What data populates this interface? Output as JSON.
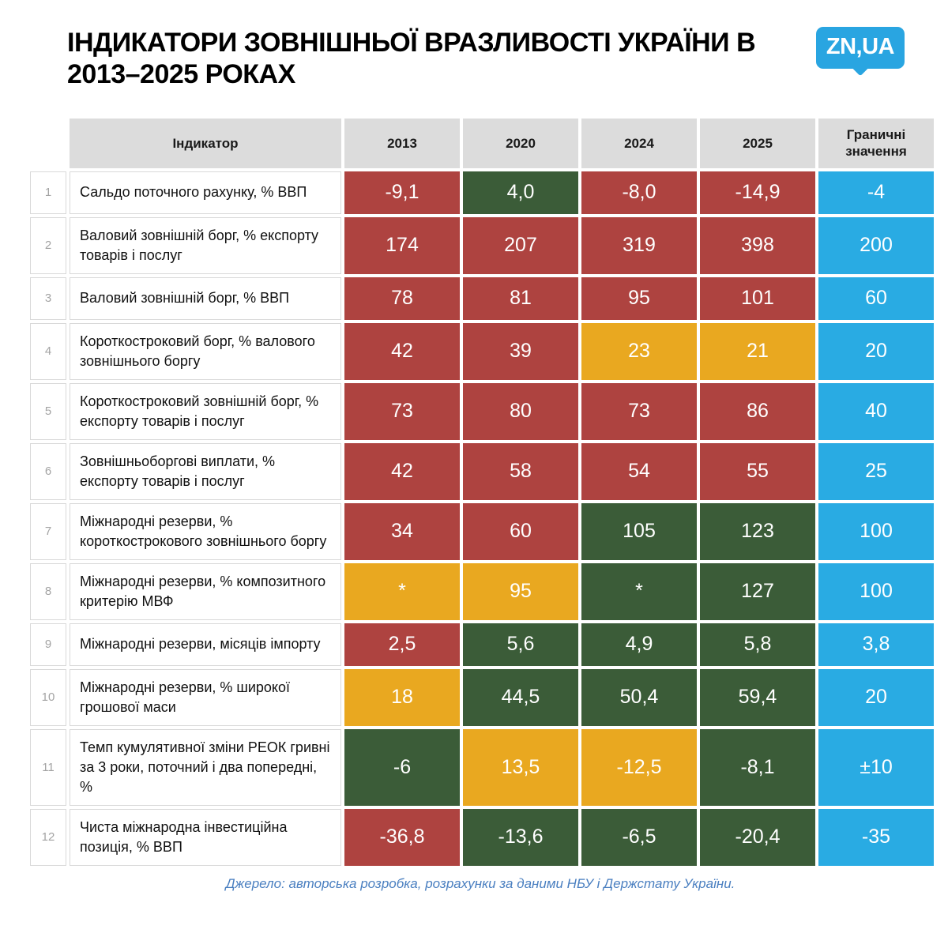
{
  "logo_text": "ZN,UA",
  "chart_data": {
    "type": "table",
    "title": "Індикатори зовнішньої вразливості України в 2013–2025 роках",
    "columns": [
      "Індикатор",
      "2013",
      "2020",
      "2024",
      "2025",
      "Граничні значення"
    ],
    "legend_colors": {
      "red": "#ae4340",
      "green": "#3b5c38",
      "yellow": "#e9a820",
      "blue": "#29abe3"
    },
    "rows": [
      {
        "num": "1",
        "indicator": "Сальдо поточного рахунку, % ВВП",
        "values": [
          {
            "v": "-9,1",
            "c": "red"
          },
          {
            "v": "4,0",
            "c": "green"
          },
          {
            "v": "-8,0",
            "c": "red"
          },
          {
            "v": "-14,9",
            "c": "red"
          }
        ],
        "threshold": "-4"
      },
      {
        "num": "2",
        "indicator": "Валовий зовнішній борг, % експорту товарів і послуг",
        "values": [
          {
            "v": "174",
            "c": "red"
          },
          {
            "v": "207",
            "c": "red"
          },
          {
            "v": "319",
            "c": "red"
          },
          {
            "v": "398",
            "c": "red"
          }
        ],
        "threshold": "200"
      },
      {
        "num": "3",
        "indicator": "Валовий зовнішній борг, % ВВП",
        "values": [
          {
            "v": "78",
            "c": "red"
          },
          {
            "v": "81",
            "c": "red"
          },
          {
            "v": "95",
            "c": "red"
          },
          {
            "v": "101",
            "c": "red"
          }
        ],
        "threshold": "60"
      },
      {
        "num": "4",
        "indicator": "Короткостроковий борг, % валового зовнішнього боргу",
        "values": [
          {
            "v": "42",
            "c": "red"
          },
          {
            "v": "39",
            "c": "red"
          },
          {
            "v": "23",
            "c": "yellow"
          },
          {
            "v": "21",
            "c": "yellow"
          }
        ],
        "threshold": "20"
      },
      {
        "num": "5",
        "indicator": "Короткостроковий зовнішній борг, % експорту товарів і послуг",
        "values": [
          {
            "v": "73",
            "c": "red"
          },
          {
            "v": "80",
            "c": "red"
          },
          {
            "v": "73",
            "c": "red"
          },
          {
            "v": "86",
            "c": "red"
          }
        ],
        "threshold": "40"
      },
      {
        "num": "6",
        "indicator": "Зовнішньоборгові виплати, % експорту товарів і послуг",
        "values": [
          {
            "v": "42",
            "c": "red"
          },
          {
            "v": "58",
            "c": "red"
          },
          {
            "v": "54",
            "c": "red"
          },
          {
            "v": "55",
            "c": "red"
          }
        ],
        "threshold": "25"
      },
      {
        "num": "7",
        "indicator": "Міжнародні резерви, % короткострокового зовнішнього боргу",
        "values": [
          {
            "v": "34",
            "c": "red"
          },
          {
            "v": "60",
            "c": "red"
          },
          {
            "v": "105",
            "c": "green"
          },
          {
            "v": "123",
            "c": "green"
          }
        ],
        "threshold": "100"
      },
      {
        "num": "8",
        "indicator": "Міжнародні резерви, % композитного критерію МВФ",
        "values": [
          {
            "v": "*",
            "c": "yellow"
          },
          {
            "v": "95",
            "c": "yellow"
          },
          {
            "v": "*",
            "c": "green"
          },
          {
            "v": "127",
            "c": "green"
          }
        ],
        "threshold": "100"
      },
      {
        "num": "9",
        "indicator": "Міжнародні резерви, місяців імпорту",
        "values": [
          {
            "v": "2,5",
            "c": "red"
          },
          {
            "v": "5,6",
            "c": "green"
          },
          {
            "v": "4,9",
            "c": "green"
          },
          {
            "v": "5,8",
            "c": "green"
          }
        ],
        "threshold": "3,8"
      },
      {
        "num": "10",
        "indicator": "Міжнародні резерви, % широкої грошової маси",
        "values": [
          {
            "v": "18",
            "c": "yellow"
          },
          {
            "v": "44,5",
            "c": "green"
          },
          {
            "v": "50,4",
            "c": "green"
          },
          {
            "v": "59,4",
            "c": "green"
          }
        ],
        "threshold": "20"
      },
      {
        "num": "11",
        "indicator": "Темп кумулятивної зміни РЕОК гривні за 3 роки, поточний і два попередні, %",
        "values": [
          {
            "v": "-6",
            "c": "green"
          },
          {
            "v": "13,5",
            "c": "yellow"
          },
          {
            "v": "-12,5",
            "c": "yellow"
          },
          {
            "v": "-8,1",
            "c": "green"
          }
        ],
        "threshold": "±10"
      },
      {
        "num": "12",
        "indicator": "Чиста міжнародна інвестиційна позиція, % ВВП",
        "values": [
          {
            "v": "-36,8",
            "c": "red"
          },
          {
            "v": "-13,6",
            "c": "green"
          },
          {
            "v": "-6,5",
            "c": "green"
          },
          {
            "v": "-20,4",
            "c": "green"
          }
        ],
        "threshold": "-35"
      }
    ],
    "source": "Джерело: авторська розробка, розрахунки за даними НБУ і Держстату України."
  }
}
